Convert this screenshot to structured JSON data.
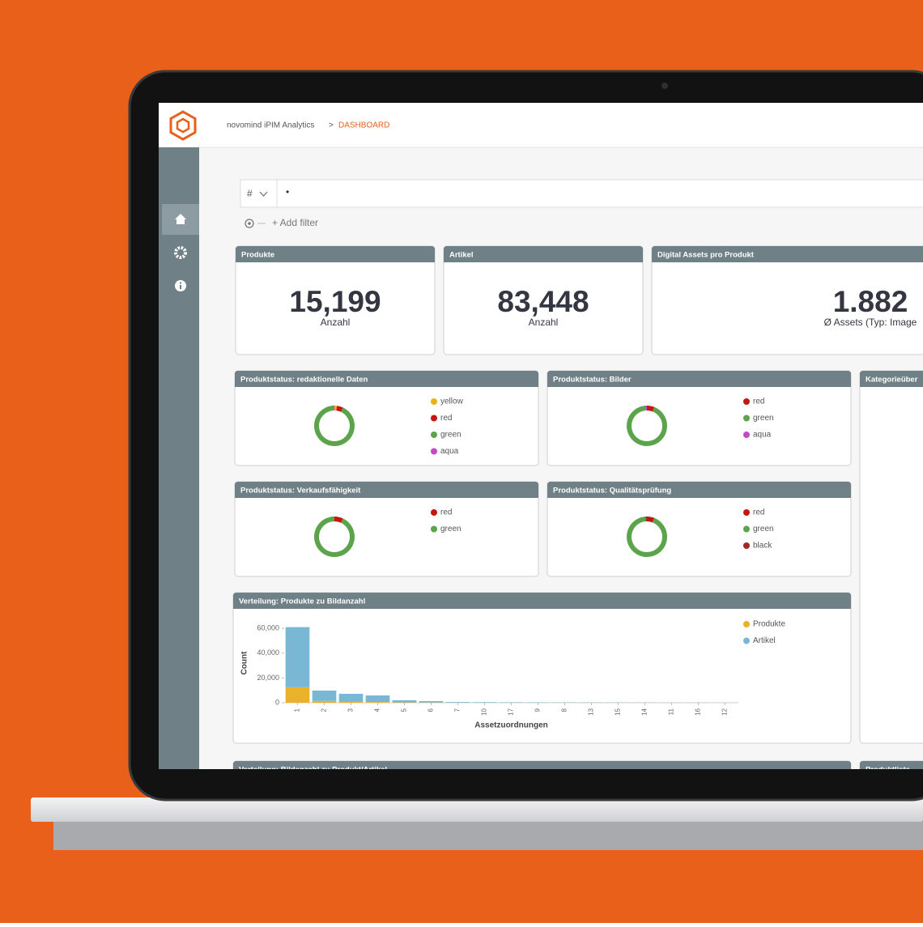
{
  "header": {
    "app": "novomind iPIM Analytics",
    "separator": ">",
    "current": "DASHBOARD"
  },
  "query": {
    "type_selector": "#",
    "text": "•",
    "add_filter": "+ Add filter"
  },
  "metrics": [
    {
      "title": "Produkte",
      "value": "15,199",
      "label": "Anzahl"
    },
    {
      "title": "Artikel",
      "value": "83,448",
      "label": "Anzahl"
    },
    {
      "title": "Digital Assets pro Produkt",
      "value": "1.882",
      "label": "Ø Assets (Typ: Image"
    }
  ],
  "status_panels": [
    {
      "title": "Produktstatus: redaktionelle Daten",
      "type": "donut",
      "series": [
        {
          "name": "yellow",
          "color": "#e6b418",
          "value": 2
        },
        {
          "name": "red",
          "color": "#c4170f",
          "value": 5
        },
        {
          "name": "green",
          "color": "#5ba44b",
          "value": 92
        },
        {
          "name": "aqua",
          "color": "#c04ac8",
          "value": 1
        }
      ]
    },
    {
      "title": "Produktstatus: Bilder",
      "type": "donut",
      "series": [
        {
          "name": "red",
          "color": "#c4170f",
          "value": 6
        },
        {
          "name": "green",
          "color": "#5ba44b",
          "value": 93
        },
        {
          "name": "aqua",
          "color": "#c04ac8",
          "value": 1
        }
      ]
    },
    {
      "title": "Produktstatus: Verkaufsfähigkeit",
      "type": "donut",
      "series": [
        {
          "name": "red",
          "color": "#c4170f",
          "value": 7
        },
        {
          "name": "green",
          "color": "#5ba44b",
          "value": 93
        }
      ]
    },
    {
      "title": "Produktstatus: Qualitätsprüfung",
      "type": "donut",
      "series": [
        {
          "name": "red",
          "color": "#c4170f",
          "value": 6
        },
        {
          "name": "green",
          "color": "#5ba44b",
          "value": 93
        },
        {
          "name": "black",
          "color": "#a3282a",
          "value": 1
        }
      ]
    }
  ],
  "histogram": {
    "type": "bar",
    "title": "Verteilung: Produkte zu Bildanzahl",
    "x_label": "Assetzuordnungen",
    "y_label": "Count",
    "categories": [
      "1",
      "2",
      "3",
      "4",
      "5",
      "6",
      "7",
      "10",
      "17",
      "9",
      "8",
      "13",
      "15",
      "14",
      "11",
      "16",
      "12"
    ],
    "series": [
      {
        "name": "Produkte",
        "color": "#e9b12c",
        "values": [
          12500,
          1500,
          700,
          600,
          300,
          200,
          100,
          80,
          60,
          50,
          40,
          30,
          30,
          20,
          20,
          15,
          10
        ]
      },
      {
        "name": "Artikel",
        "color": "#79b8d4",
        "values": [
          48500,
          8300,
          6500,
          5300,
          1700,
          1100,
          500,
          420,
          340,
          300,
          260,
          220,
          190,
          160,
          130,
          110,
          90
        ]
      }
    ],
    "ylim": [
      0,
      64000
    ],
    "yticks": [
      0,
      {
        "value": 20000,
        "label": "20,000"
      },
      {
        "value": 40000,
        "label": "40,000"
      },
      {
        "value": 60000,
        "label": "60,000"
      }
    ]
  },
  "side_panel": {
    "title": "Kategorieüber"
  },
  "bottom_panels": [
    {
      "title": "Verteilung: Bildanzahl zu Produkt/Artikel"
    },
    {
      "title": "Produktliste"
    }
  ]
}
